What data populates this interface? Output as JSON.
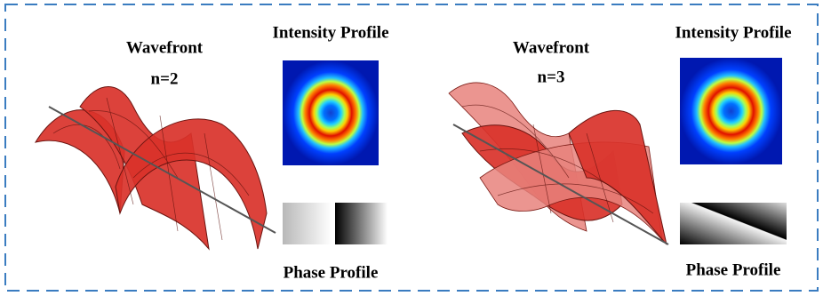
{
  "panels": [
    {
      "wavefront_label": "Wavefront",
      "order_label": "n=2",
      "intensity_label": "Intensity Profile",
      "phase_label": "Phase Profile"
    },
    {
      "wavefront_label": "Wavefront",
      "order_label": "n=3",
      "intensity_label": "Intensity Profile",
      "phase_label": "Phase Profile"
    }
  ]
}
